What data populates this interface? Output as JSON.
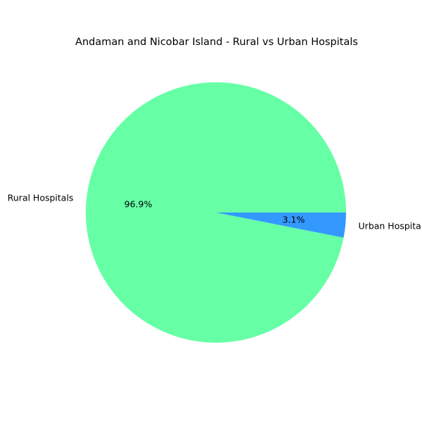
{
  "chart_data": {
    "type": "pie",
    "title": "Andaman and Nicobar Island - Rural vs Urban Hospitals",
    "categories": [
      "Rural Hospitals",
      "Urban Hospitals"
    ],
    "values": [
      96.9,
      3.1
    ],
    "percent_labels": [
      "96.9%",
      "3.1%"
    ],
    "colors": [
      "#66ffa6",
      "#3399ff"
    ],
    "start_angle_deg": 0,
    "direction": "counterclockwise",
    "legend": "none"
  }
}
